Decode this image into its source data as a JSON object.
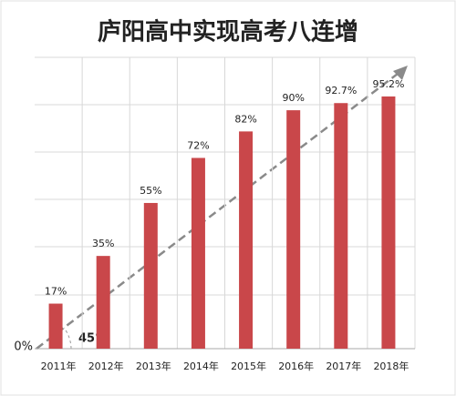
{
  "chart_data": {
    "type": "bar",
    "title": "庐阳高中实现高考八连增",
    "categories": [
      "2011年",
      "2012年",
      "2013年",
      "2014年",
      "2015年",
      "2016年",
      "2017年",
      "2018年"
    ],
    "values": [
      17,
      35,
      55,
      72,
      82,
      90,
      92.7,
      95.2
    ],
    "value_labels": [
      "17%",
      "35%",
      "55%",
      "72%",
      "82%",
      "90%",
      "92.7%",
      "95.2%"
    ],
    "color": "#c9474a",
    "ylim": [
      0,
      100
    ],
    "yticks": [
      {
        "value": 0,
        "label": "0%"
      }
    ],
    "annotation": "45°"
  }
}
